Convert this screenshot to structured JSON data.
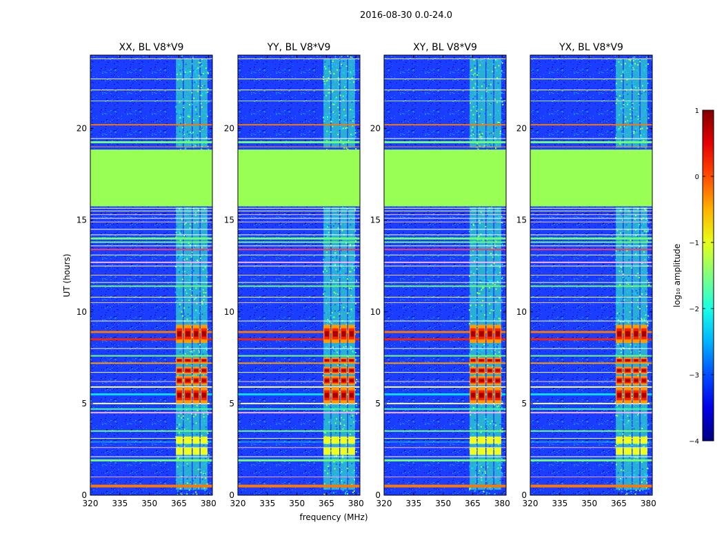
{
  "figure": {
    "suptitle": "2016-08-30 0.0-24.0"
  },
  "chart_data": {
    "type": "heatmap",
    "y_label": "UT (hours)",
    "x_label": "frequency (MHz)",
    "x_range_mhz": [
      320,
      382
    ],
    "y_range_hours": [
      0,
      24
    ],
    "x_ticks": [
      320,
      335,
      350,
      365,
      380
    ],
    "y_ticks": [
      0,
      5,
      10,
      15,
      20
    ],
    "panels": [
      {
        "title": "XX, BL V8*V9"
      },
      {
        "title": "YY, BL V8*V9"
      },
      {
        "title": "XY, BL V8*V9"
      },
      {
        "title": "YX, BL V8*V9"
      }
    ],
    "colorbar": {
      "label": "log₁₀ amplitude",
      "range": [
        -4,
        1
      ],
      "ticks": [
        1,
        0,
        -1,
        -2,
        -3,
        -4
      ],
      "tick_labels": [
        "1",
        "0",
        "−1",
        "−2",
        "−3",
        "−4"
      ],
      "colormap": "jet"
    },
    "features": {
      "flagged_gap_hours": [
        15.75,
        18.85
      ],
      "rfi_band_mhz": [
        363,
        380
      ],
      "bright_blocks_hours": [
        [
          5.0,
          5.9
        ],
        [
          6.0,
          6.5
        ],
        [
          6.6,
          7.0
        ],
        [
          7.2,
          7.5
        ],
        [
          8.3,
          9.3
        ]
      ],
      "colors": {
        "flagged": "#99ff55",
        "background": "#1a3dff",
        "deep": "#00008f"
      }
    }
  }
}
